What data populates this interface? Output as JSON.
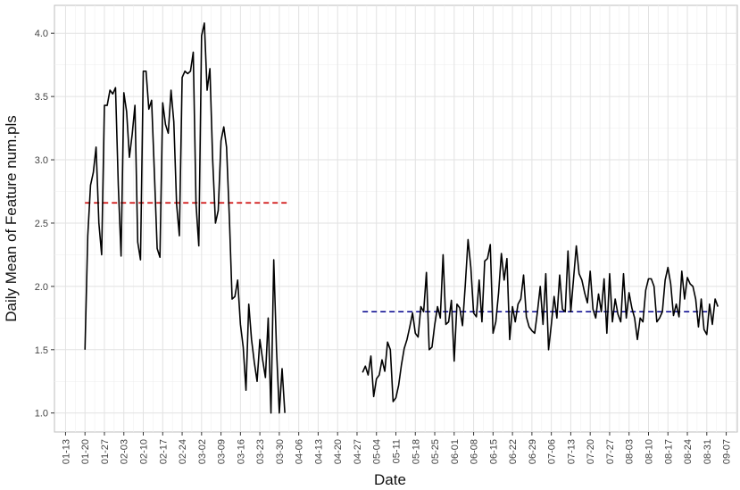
{
  "chart_data": {
    "type": "line",
    "xlabel": "Date",
    "ylabel": "Daily Mean of Feature num.pls",
    "year": 2020,
    "xlim": [
      "2020-01-09",
      "2020-09-11"
    ],
    "ylim": [
      0.85,
      4.22
    ],
    "yticks": [
      1.0,
      1.5,
      2.0,
      2.5,
      3.0,
      3.5,
      4.0
    ],
    "ytick_labels": [
      "1.0",
      "1.5",
      "2.0",
      "2.5",
      "3.0",
      "3.5",
      "4.0"
    ],
    "xticks": [
      "2020-01-13",
      "2020-01-20",
      "2020-01-27",
      "2020-02-03",
      "2020-02-10",
      "2020-02-17",
      "2020-02-24",
      "2020-03-02",
      "2020-03-09",
      "2020-03-16",
      "2020-03-23",
      "2020-03-30",
      "2020-04-06",
      "2020-04-13",
      "2020-04-20",
      "2020-04-27",
      "2020-05-04",
      "2020-05-11",
      "2020-05-18",
      "2020-05-25",
      "2020-06-01",
      "2020-06-08",
      "2020-06-15",
      "2020-06-22",
      "2020-06-29",
      "2020-07-06",
      "2020-07-13",
      "2020-07-20",
      "2020-07-27",
      "2020-08-03",
      "2020-08-10",
      "2020-08-17",
      "2020-08-24",
      "2020-08-31",
      "2020-09-07"
    ],
    "xtick_labels": [
      "01-13",
      "01-20",
      "01-27",
      "02-03",
      "02-10",
      "02-17",
      "02-24",
      "03-02",
      "03-09",
      "03-16",
      "03-23",
      "03-30",
      "04-06",
      "04-13",
      "04-20",
      "04-27",
      "05-04",
      "05-11",
      "05-18",
      "05-25",
      "06-01",
      "06-08",
      "06-15",
      "06-22",
      "06-29",
      "07-06",
      "07-13",
      "07-20",
      "07-27",
      "08-03",
      "08-10",
      "08-17",
      "08-24",
      "08-31",
      "09-07"
    ],
    "grid": true,
    "series": [
      {
        "color": "#000000",
        "segments": [
          {
            "start": "2020-01-20",
            "values": [
              1.5,
              2.4,
              2.8,
              2.9,
              3.1,
              2.5,
              2.25,
              3.43,
              3.43,
              3.55,
              3.52,
              3.57,
              2.8,
              2.24,
              3.53,
              3.38,
              3.02,
              3.2,
              3.43,
              2.35,
              2.21,
              3.7,
              3.7,
              3.4,
              3.47,
              2.9,
              2.3,
              2.23,
              3.45,
              3.28,
              3.21,
              3.55,
              3.3,
              2.65,
              2.4,
              3.65,
              3.7,
              3.68,
              3.7,
              3.85,
              2.65,
              2.32,
              3.98,
              4.08,
              3.55,
              3.72,
              3.0,
              2.5,
              2.6,
              3.15,
              3.26,
              3.1,
              2.55,
              1.9,
              1.92,
              2.05,
              1.7,
              1.52,
              1.18,
              1.86,
              1.58,
              1.4,
              1.25,
              1.58,
              1.42,
              1.28,
              1.75,
              1.0,
              2.21,
              1.5,
              1.0,
              1.35,
              1.0
            ]
          },
          {
            "start": "2020-04-29",
            "values": [
              1.32,
              1.37,
              1.3,
              1.45,
              1.13,
              1.27,
              1.3,
              1.42,
              1.33,
              1.56,
              1.5,
              1.09,
              1.12,
              1.22,
              1.38,
              1.51,
              1.58,
              1.68,
              1.79,
              1.63,
              1.6,
              1.84,
              1.8,
              2.11,
              1.5,
              1.52,
              1.7,
              1.84,
              1.75,
              2.25,
              1.7,
              1.72,
              1.89,
              1.41,
              1.86,
              1.83,
              1.69,
              2.01,
              2.37,
              2.15,
              1.79,
              1.76,
              2.05,
              1.72,
              2.2,
              2.22,
              2.33,
              1.63,
              1.72,
              1.95,
              2.26,
              2.05,
              2.22,
              1.58,
              1.84,
              1.72,
              1.86,
              1.9,
              2.09,
              1.76,
              1.68,
              1.65,
              1.63,
              1.8,
              2.0,
              1.7,
              2.1,
              1.5,
              1.7,
              1.92,
              1.75,
              2.09,
              1.82,
              1.8,
              2.28,
              1.8,
              2.06,
              2.32,
              2.1,
              2.05,
              1.95,
              1.87,
              2.12,
              1.82,
              1.75,
              1.94,
              1.8,
              2.06,
              1.63,
              2.1,
              1.72,
              1.9,
              1.78,
              1.72,
              2.1,
              1.75,
              1.95,
              1.83,
              1.75,
              1.58,
              1.75,
              1.72,
              1.97,
              2.06,
              2.06,
              2.0,
              1.72,
              1.75,
              1.8,
              2.05,
              2.15,
              2.02,
              1.77,
              1.86,
              1.76,
              2.12,
              1.9,
              2.07,
              2.02,
              2.0,
              1.9,
              1.68,
              1.9,
              1.66,
              1.62,
              1.86,
              1.7,
              1.9,
              1.84
            ]
          }
        ]
      }
    ],
    "reference_lines": [
      {
        "color": "#cc0000",
        "y": 2.66,
        "x_start": "2020-01-20",
        "x_end": "2020-04-02",
        "style": "dashed"
      },
      {
        "color": "#00008b",
        "y": 1.8,
        "x_start": "2020-04-29",
        "x_end": "2020-09-01",
        "style": "dashed"
      }
    ]
  }
}
